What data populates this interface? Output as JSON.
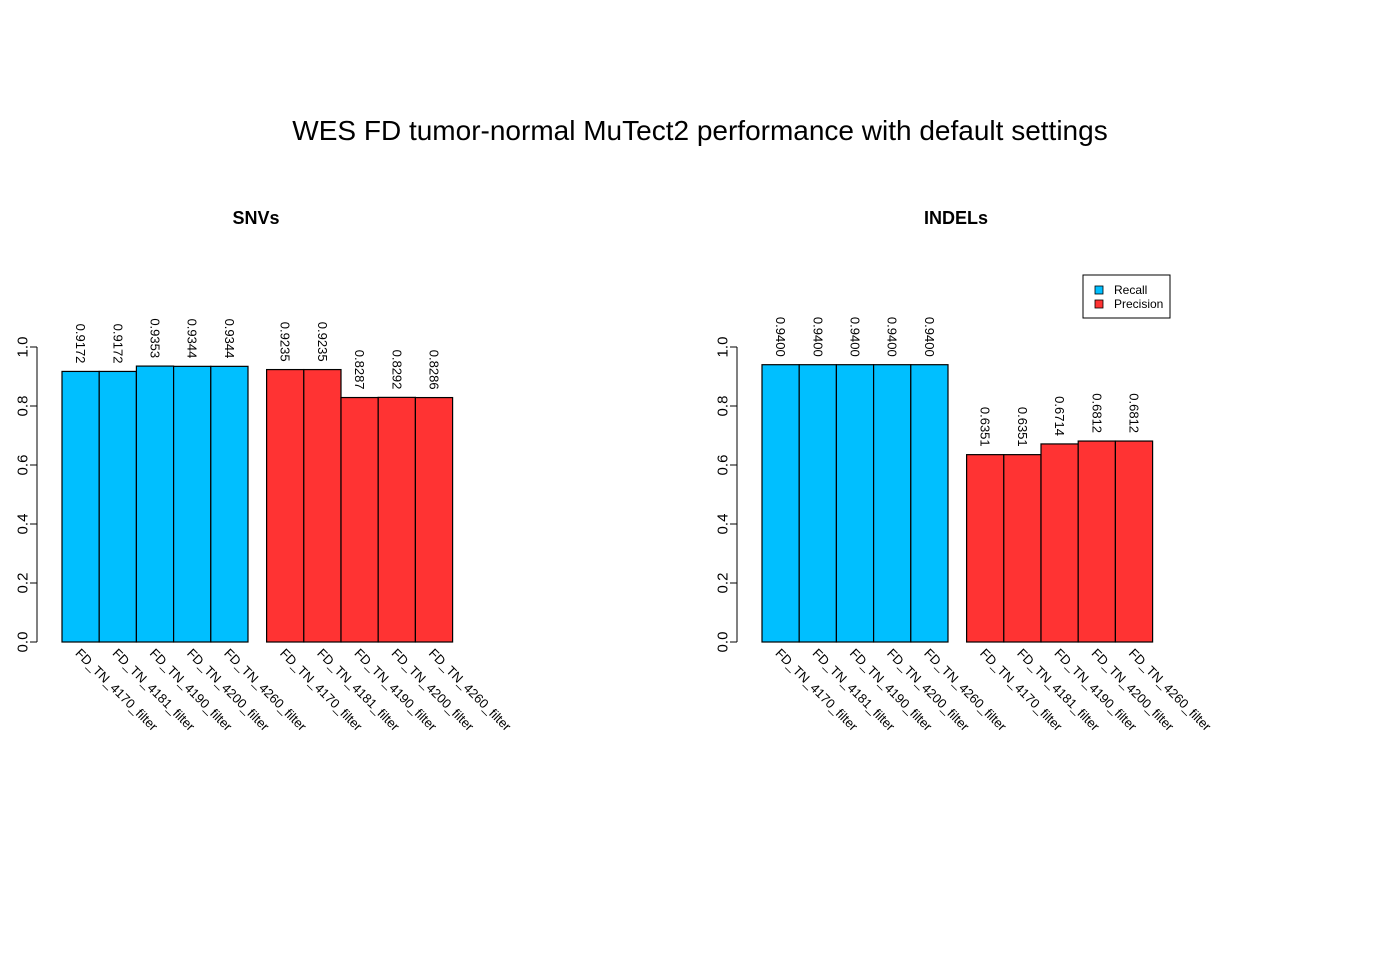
{
  "main_title": "WES FD tumor-normal MuTect2 performance with default settings",
  "colors": {
    "recall": "#00bfff",
    "precision": "#ff3333"
  },
  "legend": [
    "Recall",
    "Precision"
  ],
  "chart_data": [
    {
      "type": "bar",
      "title": "SNVs",
      "ylim": [
        0,
        1
      ],
      "yticks": [
        "0.0",
        "0.2",
        "0.4",
        "0.6",
        "0.8",
        "1.0"
      ],
      "grid": false,
      "series": [
        {
          "name": "Recall",
          "categories": [
            "FD_TN_4170_filter",
            "FD_TN_4181_filter",
            "FD_TN_4190_filter",
            "FD_TN_4200_filter",
            "FD_TN_4260_filter"
          ],
          "values": [
            0.9172,
            0.9172,
            0.9353,
            0.9344,
            0.9344
          ],
          "labels": [
            "0.9172",
            "0.9172",
            "0.9353",
            "0.9344",
            "0.9344"
          ]
        },
        {
          "name": "Precision",
          "categories": [
            "FD_TN_4170_filter",
            "FD_TN_4181_filter",
            "FD_TN_4190_filter",
            "FD_TN_4200_filter",
            "FD_TN_4260_filter"
          ],
          "values": [
            0.9235,
            0.9235,
            0.8287,
            0.8292,
            0.8286
          ],
          "labels": [
            "0.9235",
            "0.9235",
            "0.8287",
            "0.8292",
            "0.8286"
          ]
        }
      ]
    },
    {
      "type": "bar",
      "title": "INDELs",
      "ylim": [
        0,
        1
      ],
      "yticks": [
        "0.0",
        "0.2",
        "0.4",
        "0.6",
        "0.8",
        "1.0"
      ],
      "grid": false,
      "legend_position": "top-right",
      "series": [
        {
          "name": "Recall",
          "categories": [
            "FD_TN_4170_filter",
            "FD_TN_4181_filter",
            "FD_TN_4190_filter",
            "FD_TN_4200_filter",
            "FD_TN_4260_filter"
          ],
          "values": [
            0.94,
            0.94,
            0.94,
            0.94,
            0.94
          ],
          "labels": [
            "0.9400",
            "0.9400",
            "0.9400",
            "0.9400",
            "0.9400"
          ]
        },
        {
          "name": "Precision",
          "categories": [
            "FD_TN_4170_filter",
            "FD_TN_4181_filter",
            "FD_TN_4190_filter",
            "FD_TN_4200_filter",
            "FD_TN_4260_filter"
          ],
          "values": [
            0.6351,
            0.6351,
            0.6714,
            0.6812,
            0.6812
          ],
          "labels": [
            "0.6351",
            "0.6351",
            "0.6714",
            "0.6812",
            "0.6812"
          ]
        }
      ]
    }
  ]
}
